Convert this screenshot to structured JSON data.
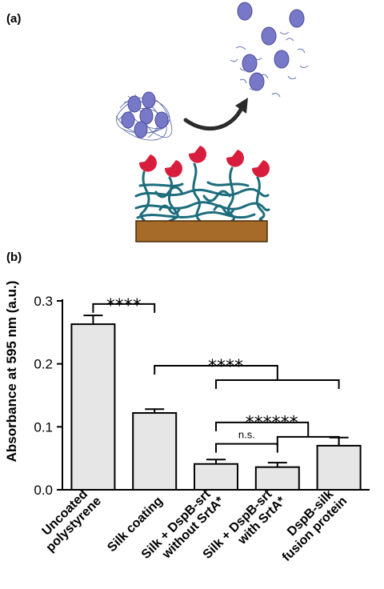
{
  "panels": {
    "a": "(a)",
    "b": "(b)"
  },
  "colors": {
    "bar_fill": "#e6e6e6",
    "stroke": "#000000",
    "cell": "#7878c8",
    "fiber": "#3a4fa0",
    "enzyme": "#d81e3c",
    "silk": "#1d6d7c",
    "substrate": "#a66b28",
    "arrow": "#2b2b2b"
  },
  "chart_data": {
    "type": "bar",
    "ylabel": "Absorbance at 595 nm (a.u.)",
    "ylim": [
      0,
      0.3
    ],
    "yticks": [
      "0.0",
      "0.1",
      "0.2",
      "0.3"
    ],
    "grid": false,
    "categories": [
      [
        "Uncoated",
        "polystyrene"
      ],
      [
        "Silk coating"
      ],
      [
        "Silk + DspB-srt",
        "without SrtA*"
      ],
      [
        "Silk + DspB-srt",
        "with SrtA*"
      ],
      [
        "DspB-silk",
        "fusion protein"
      ]
    ],
    "values": [
      0.263,
      0.122,
      0.041,
      0.036,
      0.07
    ],
    "errors": [
      0.014,
      0.006,
      0.007,
      0.007,
      0.013
    ],
    "significance": [
      {
        "label": "****",
        "from": 0,
        "to": 1,
        "y": 0.295
      },
      {
        "label": "****",
        "from": 1,
        "to": [
          2,
          3,
          4
        ],
        "y": 0.197
      },
      {
        "label": "******",
        "from": 2,
        "to": [
          3,
          4
        ],
        "y": 0.107
      },
      {
        "label": "n.s.",
        "from": 2,
        "to": 3,
        "y": 0.073
      }
    ]
  }
}
